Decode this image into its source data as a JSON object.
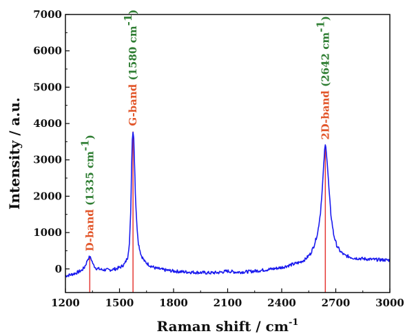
{
  "chart_data": {
    "type": "line",
    "title": "",
    "xlabel": "Raman shift / cm",
    "xlabel_sup": "-1",
    "ylabel": "Intensity / a.u.",
    "xlim": [
      1200,
      3000
    ],
    "ylim": [
      -650,
      7000
    ],
    "x_ticks": [
      1200,
      1500,
      1800,
      2100,
      2400,
      2700,
      3000
    ],
    "y_ticks": [
      0,
      1000,
      2000,
      3000,
      4000,
      5000,
      6000,
      7000
    ],
    "grid": false,
    "legend": "none",
    "line_color": "#1a1aee",
    "marker_color": "#e53935",
    "series": [
      {
        "values_note": "x in cm-1, y in a.u.",
        "points": [
          [
            1200,
            -190
          ],
          [
            1230,
            -160
          ],
          [
            1260,
            -110
          ],
          [
            1290,
            -40
          ],
          [
            1305,
            40
          ],
          [
            1315,
            150
          ],
          [
            1325,
            280
          ],
          [
            1335,
            330
          ],
          [
            1345,
            250
          ],
          [
            1355,
            110
          ],
          [
            1370,
            20
          ],
          [
            1400,
            -20
          ],
          [
            1440,
            -30
          ],
          [
            1480,
            0
          ],
          [
            1510,
            60
          ],
          [
            1530,
            150
          ],
          [
            1545,
            320
          ],
          [
            1555,
            700
          ],
          [
            1562,
            1500
          ],
          [
            1567,
            2800
          ],
          [
            1571,
            3600
          ],
          [
            1575,
            3780
          ],
          [
            1579,
            3600
          ],
          [
            1583,
            3000
          ],
          [
            1588,
            2100
          ],
          [
            1595,
            1300
          ],
          [
            1605,
            700
          ],
          [
            1620,
            380
          ],
          [
            1640,
            200
          ],
          [
            1670,
            90
          ],
          [
            1700,
            20
          ],
          [
            1750,
            -30
          ],
          [
            1800,
            -60
          ],
          [
            1850,
            -80
          ],
          [
            1900,
            -90
          ],
          [
            1950,
            -100
          ],
          [
            2000,
            -110
          ],
          [
            2050,
            -100
          ],
          [
            2100,
            -60
          ],
          [
            2150,
            -90
          ],
          [
            2200,
            -80
          ],
          [
            2250,
            -60
          ],
          [
            2300,
            -30
          ],
          [
            2350,
            0
          ],
          [
            2400,
            40
          ],
          [
            2450,
            110
          ],
          [
            2500,
            180
          ],
          [
            2530,
            260
          ],
          [
            2560,
            420
          ],
          [
            2580,
            650
          ],
          [
            2600,
            1000
          ],
          [
            2615,
            1550
          ],
          [
            2625,
            2200
          ],
          [
            2633,
            2850
          ],
          [
            2638,
            3250
          ],
          [
            2642,
            3400
          ],
          [
            2647,
            3280
          ],
          [
            2653,
            2900
          ],
          [
            2662,
            2200
          ],
          [
            2673,
            1500
          ],
          [
            2688,
            950
          ],
          [
            2705,
            650
          ],
          [
            2725,
            480
          ],
          [
            2750,
            370
          ],
          [
            2800,
            300
          ],
          [
            2850,
            280
          ],
          [
            2900,
            260
          ],
          [
            2950,
            250
          ],
          [
            3000,
            240
          ]
        ]
      }
    ],
    "annotations": [
      {
        "name": "D-band",
        "position": "(1335 cm",
        "sup": "-1",
        "close": ")",
        "x": 1335,
        "y": 330
      },
      {
        "name": "G-band",
        "position": "(1580 cm",
        "sup": "-1",
        "close": ")",
        "x": 1575,
        "y": 3780
      },
      {
        "name": "2D-band",
        "position": "(2642 cm",
        "sup": "-1",
        "close": ")",
        "x": 2642,
        "y": 3400
      }
    ]
  }
}
